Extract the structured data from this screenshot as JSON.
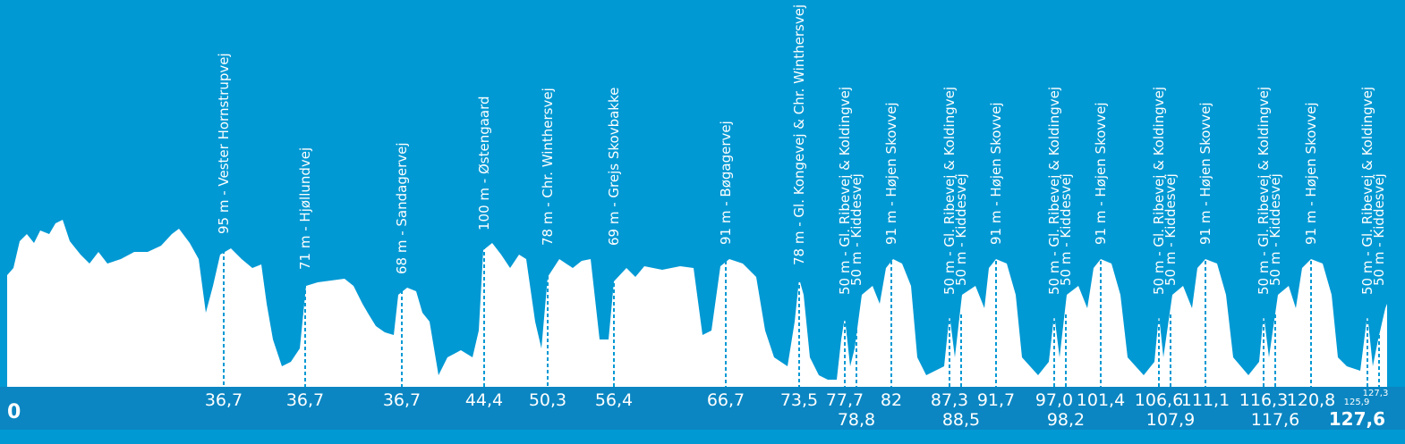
{
  "start_label": "0",
  "end_label": "127,6",
  "markers": [
    {
      "label": "95 m - Vester Hornstrupvej",
      "km": "36,7"
    },
    {
      "label": "71 m - Hjøllundvej",
      "km": "36,7"
    },
    {
      "label": "68 m - Sandagervej",
      "km": "36,7"
    },
    {
      "label": "100 m - Østengaard",
      "km": "44,4"
    },
    {
      "label": "78 m - Chr. Winthersvej",
      "km": "50,3"
    },
    {
      "label": "69 m - Grejs Skovbakke",
      "km": "56,4"
    },
    {
      "label": "91 m - Bøgagervej",
      "km": "66,7"
    },
    {
      "label": "78 m - Gl. Kongevej & Chr. Winthersvej",
      "km": "73,5"
    },
    {
      "label": "50 m - Gl. Ribevej & Koldingvej",
      "km": "77,7"
    },
    {
      "label": "50 m - Kiddesvej",
      "km": "78,8"
    },
    {
      "label": "91 m - Højen Skovvej",
      "km": "82"
    },
    {
      "label": "50 m - Gl. Ribevej & Koldingvej",
      "km": "87,3"
    },
    {
      "label": "50 m - Kiddesvej",
      "km": "88,5"
    },
    {
      "label": "91 m - Højen Skovvej",
      "km": "91,7"
    },
    {
      "label": "50 m - Gl. Ribevej & Koldingvej",
      "km": "97,0"
    },
    {
      "label": "50 m - Kiddesvej",
      "km": "98,2"
    },
    {
      "label": "91 m - Højen Skovvej",
      "km": "101,4"
    },
    {
      "label": "50 m - Gl. Ribevej & Koldingvej",
      "km": "106,6"
    },
    {
      "label": "50 m - Kiddesvej",
      "km": "107,9"
    },
    {
      "label": "91 m - Højen Skovvej",
      "km": "111,1"
    },
    {
      "label": "50 m - Gl. Ribevej & Koldingvej",
      "km": "116,3"
    },
    {
      "label": "50 m - Kiddesvej",
      "km": "117,6"
    },
    {
      "label": "91 m - Højen Skovvej",
      "km": "120,8"
    },
    {
      "label": "50 m - Gl. Ribevej & Koldingvej",
      "km": "125,9"
    },
    {
      "label": "50 m - Kiddesvej",
      "km": "127,3"
    }
  ]
}
